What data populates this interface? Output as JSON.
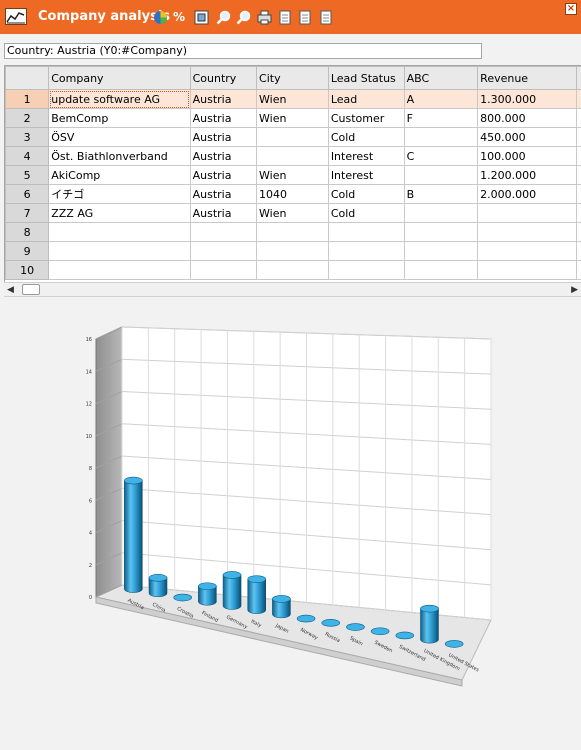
{
  "window": {
    "title": "Company analysis",
    "close_glyph": "×",
    "toolbar": [
      {
        "name": "pie-chart-icon",
        "kind": "pie"
      },
      {
        "name": "percent-icon",
        "kind": "text",
        "glyph": "%"
      },
      {
        "name": "chart-settings-icon",
        "kind": "frame"
      },
      {
        "name": "zoom-in-icon",
        "kind": "zoom"
      },
      {
        "name": "zoom-out-icon",
        "kind": "zoom"
      },
      {
        "name": "print-icon",
        "kind": "print"
      },
      {
        "name": "export-icon",
        "kind": "doc"
      },
      {
        "name": "copy-icon",
        "kind": "doc"
      },
      {
        "name": "paste-icon",
        "kind": "doc"
      }
    ]
  },
  "filter": {
    "text": "Country: Austria (Y0:#Company)"
  },
  "grid": {
    "columns": [
      "Company",
      "Country",
      "City",
      "Lead Status",
      "ABC",
      "Revenue"
    ],
    "rows": [
      {
        "n": "1",
        "cells": [
          "update software AG",
          "Austria",
          "Wien",
          "Lead",
          "A",
          "1.300.000"
        ]
      },
      {
        "n": "2",
        "cells": [
          "BemComp",
          "Austria",
          "Wien",
          "Customer",
          "F",
          "800.000"
        ]
      },
      {
        "n": "3",
        "cells": [
          "ÖSV",
          "Austria",
          "",
          "Cold",
          "",
          "450.000"
        ]
      },
      {
        "n": "4",
        "cells": [
          "Öst. Biathlonverband",
          "Austria",
          "",
          "Interest",
          "C",
          "100.000"
        ]
      },
      {
        "n": "5",
        "cells": [
          "AkiComp",
          "Austria",
          "Wien",
          "Interest",
          "",
          "1.200.000"
        ]
      },
      {
        "n": "6",
        "cells": [
          "イチゴ",
          "Austria",
          "1040",
          "Cold",
          "B",
          "2.000.000"
        ]
      },
      {
        "n": "7",
        "cells": [
          "ZZZ AG",
          "Austria",
          "Wien",
          "Cold",
          "",
          ""
        ]
      },
      {
        "n": "8",
        "cells": [
          "",
          "",
          "",
          "",
          "",
          ""
        ]
      },
      {
        "n": "9",
        "cells": [
          "",
          "",
          "",
          "",
          "",
          ""
        ]
      },
      {
        "n": "10",
        "cells": [
          "",
          "",
          "",
          "",
          "",
          ""
        ]
      }
    ],
    "selected_row": 0
  },
  "chart_data": {
    "type": "bar",
    "style": "3d-cylinder",
    "categories": [
      "Austria",
      "China",
      "Croatia",
      "Finland",
      "Germany",
      "Italy",
      "Japan",
      "Norway",
      "Russia",
      "Spain",
      "Sweden",
      "Switzerland",
      "United Kingdom",
      "United States"
    ],
    "values": [
      7,
      1,
      0,
      1,
      2,
      2,
      1,
      0,
      0,
      0,
      0,
      0,
      2,
      0
    ],
    "ylim": [
      0,
      16
    ],
    "yticks": [
      0,
      2,
      4,
      6,
      8,
      10,
      12,
      14,
      16
    ],
    "grid": true,
    "bar_color": "#1f8fc4"
  }
}
